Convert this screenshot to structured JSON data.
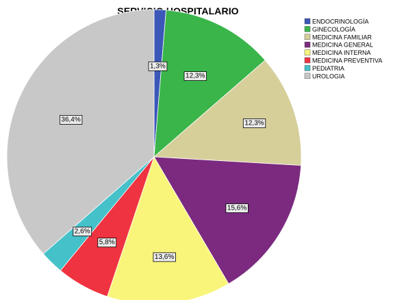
{
  "chart_data": {
    "type": "pie",
    "title": "SERVICIO HOSPITALARIO",
    "legend_position": "top-right",
    "slices": [
      {
        "label": "ENDOCRINOLOGÍA",
        "value": 1.3,
        "display": "1,3%",
        "color": "#3b57b8"
      },
      {
        "label": "GINECOLOGÍA",
        "value": 12.3,
        "display": "12,3%",
        "color": "#3ab54a"
      },
      {
        "label": "MEDICINA FAMILIAR",
        "value": 12.3,
        "display": "12,3%",
        "color": "#d6cf9a"
      },
      {
        "label": "MEDICINA GENERAL",
        "value": 15.6,
        "display": "15,6%",
        "color": "#7b2a7f"
      },
      {
        "label": "MEDICINA INTERNA",
        "value": 13.6,
        "display": "13,6%",
        "color": "#f9f57a"
      },
      {
        "label": "MEDICINA PREVENTIVA",
        "value": 5.8,
        "display": "5,8%",
        "color": "#ef3340"
      },
      {
        "label": "PEDIATRIA",
        "value": 2.6,
        "display": "2,6%",
        "color": "#45c1c9"
      },
      {
        "label": "UROLOGIA",
        "value": 36.4,
        "display": "36,4%",
        "color": "#c8c8c8"
      }
    ]
  }
}
